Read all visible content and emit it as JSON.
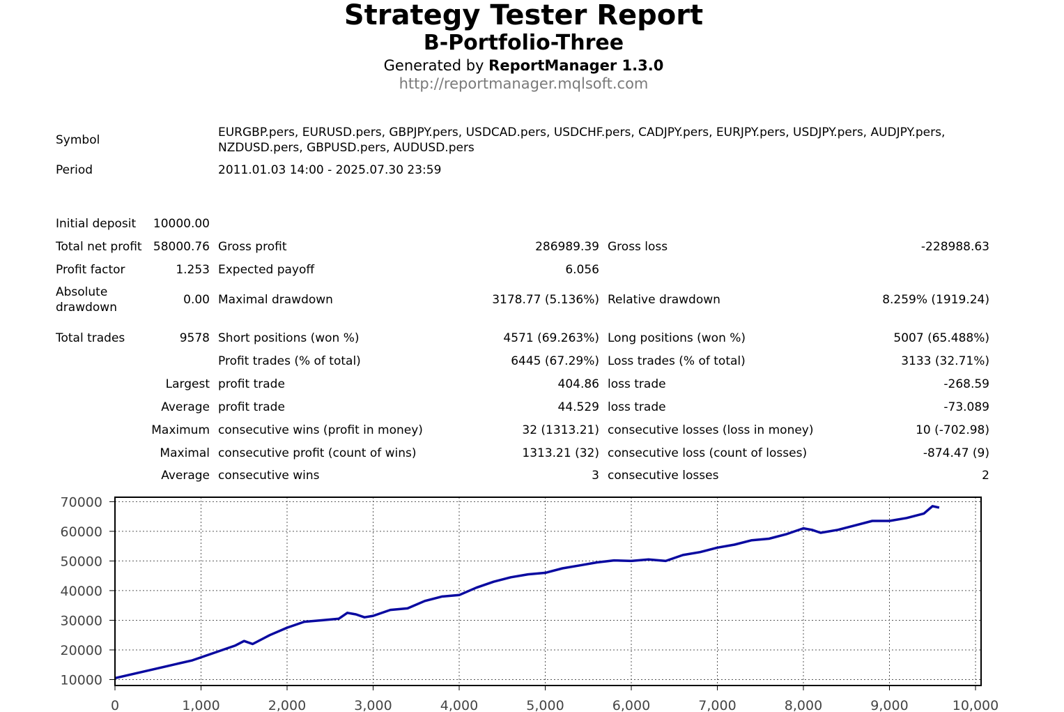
{
  "header": {
    "title": "Strategy Tester Report",
    "subtitle": "B-Portfolio-Three",
    "generated_prefix": "Generated by ",
    "generator": "ReportManager 1.3.0",
    "url": "http://reportmanager.mqlsoft.com"
  },
  "info": {
    "symbol_label": "Symbol",
    "symbol_line1": "EURGBP.pers, EURUSD.pers, GBPJPY.pers, USDCAD.pers, USDCHF.pers, CADJPY.pers, EURJPY.pers, USDJPY.pers, AUDJPY.pers,",
    "symbol_line2": "NZDUSD.pers, GBPUSD.pers, AUDUSD.pers",
    "period_label": "Period",
    "period_value": "2011.01.03 14:00 - 2025.07.30 23:59"
  },
  "stats": {
    "initial_deposit_label": "Initial deposit",
    "initial_deposit": "10000.00",
    "total_net_profit_label": "Total net profit",
    "total_net_profit": "58000.76",
    "gross_profit_label": "Gross profit",
    "gross_profit": "286989.39",
    "gross_loss_label": "Gross loss",
    "gross_loss": "-228988.63",
    "profit_factor_label": "Profit factor",
    "profit_factor": "1.253",
    "expected_payoff_label": "Expected payoff",
    "expected_payoff": "6.056",
    "absolute_drawdown_label1": "Absolute",
    "absolute_drawdown_label2": "drawdown",
    "absolute_drawdown": "0.00",
    "maximal_drawdown_label": "Maximal drawdown",
    "maximal_drawdown": "3178.77 (5.136%)",
    "relative_drawdown_label": "Relative drawdown",
    "relative_drawdown": "8.259% (1919.24)",
    "total_trades_label": "Total trades",
    "total_trades": "9578",
    "short_positions_label": "Short positions (won %)",
    "short_positions": "4571 (69.263%)",
    "long_positions_label": "Long positions (won %)",
    "long_positions": "5007 (65.488%)",
    "profit_trades_label": "Profit trades (% of total)",
    "profit_trades": "6445 (67.29%)",
    "loss_trades_label": "Loss trades (% of total)",
    "loss_trades": "3133 (32.71%)",
    "largest_label": "Largest",
    "largest_profit_label": "profit trade",
    "largest_profit": "404.86",
    "largest_loss_label": "loss trade",
    "largest_loss": "-268.59",
    "average_label": "Average",
    "average_profit_label": "profit trade",
    "average_profit": "44.529",
    "average_loss_label": "loss trade",
    "average_loss": "-73.089",
    "maximum_label": "Maximum",
    "max_consec_wins_label": "consecutive wins (profit in money)",
    "max_consec_wins": "32 (1313.21)",
    "max_consec_losses_label": "consecutive losses (loss in money)",
    "max_consec_losses": "10 (-702.98)",
    "maximal_label": "Maximal",
    "maximal_consec_profit_label": "consecutive profit (count of wins)",
    "maximal_consec_profit": "1313.21 (32)",
    "maximal_consec_loss_label": "consecutive loss (count of losses)",
    "maximal_consec_loss": "-874.47 (9)",
    "average2_label": "Average",
    "avg_consec_wins_label": "consecutive wins",
    "avg_consec_wins": "3",
    "avg_consec_losses_label": "consecutive losses",
    "avg_consec_losses": "2"
  },
  "chart_data": {
    "type": "line",
    "title": "",
    "xlabel": "",
    "ylabel": "",
    "xlim": [
      0,
      10000
    ],
    "ylim": [
      8000,
      71500
    ],
    "grid": true,
    "x_ticks": [
      0,
      1000,
      2000,
      3000,
      4000,
      5000,
      6000,
      7000,
      8000,
      9000,
      10000
    ],
    "x_tick_labels": [
      "0",
      "1,000",
      "2,000",
      "3,000",
      "4,000",
      "5,000",
      "6,000",
      "7,000",
      "8,000",
      "9,000",
      "10,000"
    ],
    "y_ticks": [
      10000,
      20000,
      30000,
      40000,
      50000,
      60000,
      70000
    ],
    "y_tick_labels": [
      "10000",
      "20000",
      "30000",
      "40000",
      "50000",
      "60000",
      "70000"
    ],
    "line_color": "#0a0aa0",
    "series": [
      {
        "x": [
          0,
          300,
          600,
          900,
          1000,
          1200,
          1400,
          1500,
          1600,
          1800,
          2000,
          2200,
          2400,
          2600,
          2700,
          2800,
          2900,
          3000,
          3200,
          3400,
          3600,
          3800,
          4000,
          4200,
          4400,
          4600,
          4800,
          5000,
          5200,
          5400,
          5600,
          5800,
          6000,
          6200,
          6400,
          6600,
          6800,
          7000,
          7200,
          7400,
          7600,
          7800,
          8000,
          8100,
          8200,
          8400,
          8600,
          8800,
          9000,
          9200,
          9400,
          9500,
          9578
        ],
        "y": [
          10500,
          12500,
          14500,
          16500,
          17500,
          19500,
          21500,
          23000,
          22000,
          25000,
          27500,
          29500,
          30000,
          30500,
          32500,
          32000,
          31000,
          31500,
          33500,
          34000,
          36500,
          38000,
          38500,
          41000,
          43000,
          44500,
          45500,
          46000,
          47500,
          48500,
          49500,
          50200,
          50000,
          50500,
          50000,
          52000,
          53000,
          54500,
          55500,
          57000,
          57500,
          59000,
          61000,
          60500,
          59500,
          60500,
          62000,
          63500,
          63500,
          64500,
          66000,
          68500,
          68000
        ]
      }
    ]
  }
}
